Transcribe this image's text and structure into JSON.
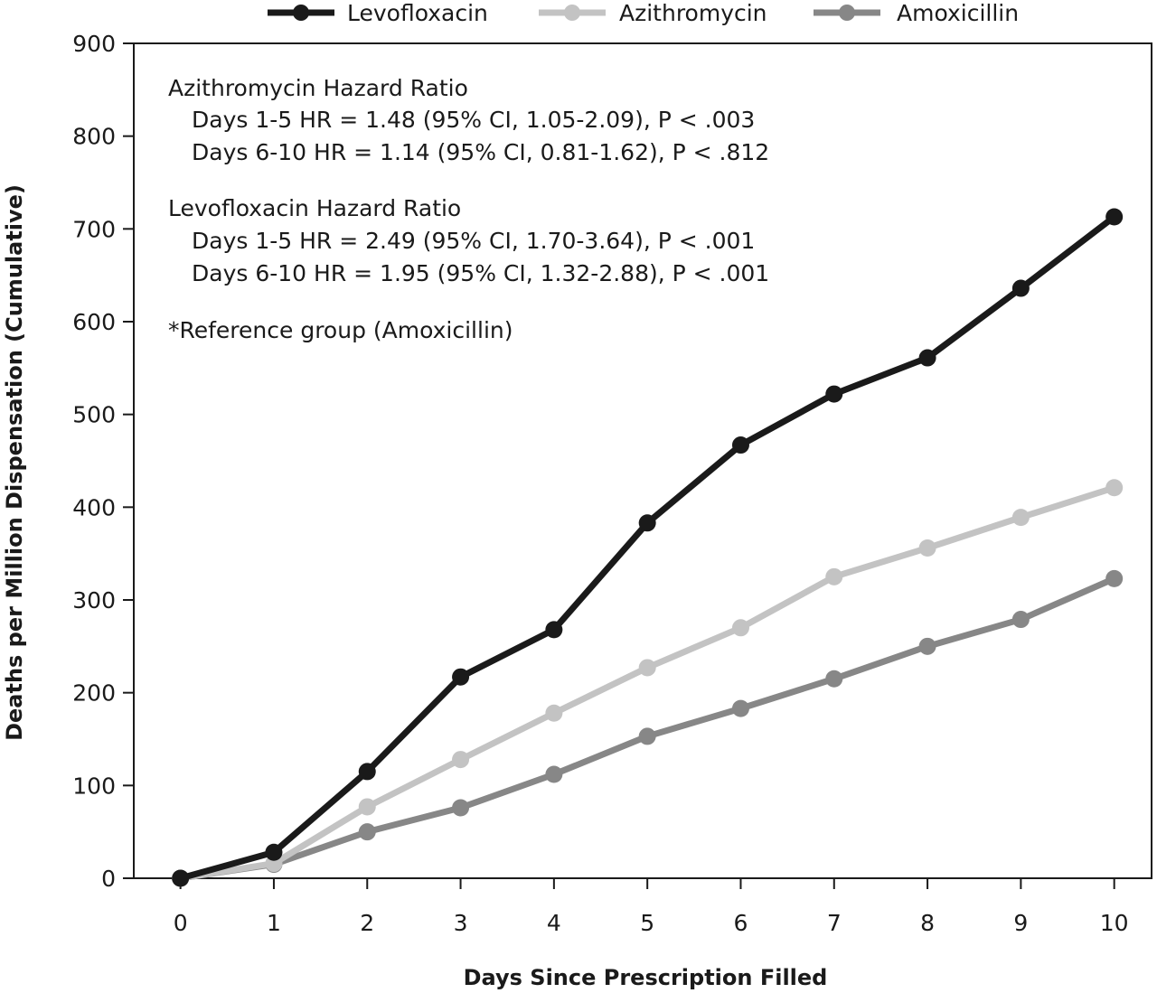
{
  "chart_data": {
    "type": "line",
    "xlabel": "Days Since Prescription Filled",
    "ylabel": "Deaths per Million Dispensation (Cumulative)",
    "x": [
      0,
      1,
      2,
      3,
      4,
      5,
      6,
      7,
      8,
      9,
      10
    ],
    "xlim": [
      -0.5,
      10.4
    ],
    "ylim": [
      0,
      900
    ],
    "xticks": [
      "0",
      "1",
      "2",
      "3",
      "4",
      "5",
      "6",
      "7",
      "8",
      "9",
      "10"
    ],
    "yticks": [
      "0",
      "100",
      "200",
      "300",
      "400",
      "500",
      "600",
      "700",
      "800",
      "900"
    ],
    "grid": false,
    "legend_position": "top",
    "series": [
      {
        "name": "Levofloxacin",
        "color": "#1a1a1a",
        "values": [
          0,
          28,
          115,
          217,
          268,
          383,
          467,
          522,
          561,
          636,
          713
        ]
      },
      {
        "name": "Azithromycin",
        "color": "#c3c3c3",
        "values": [
          0,
          16,
          77,
          128,
          178,
          227,
          270,
          325,
          356,
          389,
          421
        ]
      },
      {
        "name": "Amoxicillin",
        "color": "#878787",
        "values": [
          0,
          15,
          50,
          76,
          112,
          153,
          183,
          215,
          250,
          279,
          323
        ]
      }
    ],
    "annotations": {
      "azithromycin_title": "Azithromycin Hazard Ratio",
      "azithromycin_line1": "Days 1-5 HR = 1.48 (95% CI, 1.05-2.09), P < .003",
      "azithromycin_line2": "Days 6-10 HR = 1.14 (95% CI, 0.81-1.62), P < .812",
      "levofloxacin_title": "Levofloxacin Hazard Ratio",
      "levofloxacin_line1": "Days 1-5 HR = 2.49 (95% CI, 1.70-3.64), P < .001",
      "levofloxacin_line2": "Days 6-10 HR = 1.95 (95% CI, 1.32-2.88), P < .001",
      "reference_note": "*Reference group (Amoxicillin)"
    }
  }
}
